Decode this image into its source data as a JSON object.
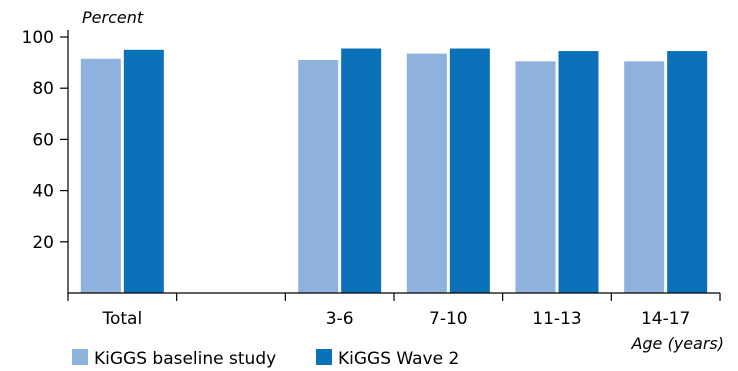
{
  "chart_data": {
    "type": "bar",
    "ylabel": "Percent",
    "xlabel": "Age (years)",
    "ylim": [
      0,
      100
    ],
    "yticks": [
      20,
      40,
      60,
      80,
      100
    ],
    "categories": [
      "Total",
      "",
      "3-6",
      "7-10",
      "11-13",
      "14-17"
    ],
    "series": [
      {
        "name": "KiGGS baseline study",
        "color": "#8eb1dd",
        "values": [
          91.5,
          null,
          91,
          93.5,
          90.5,
          90.5
        ]
      },
      {
        "name": "KiGGS Wave 2",
        "color": "#0a70b8",
        "values": [
          95,
          null,
          95.5,
          95.5,
          94.5,
          94.5
        ]
      }
    ],
    "grid": false,
    "legend_position": "bottom-left"
  }
}
